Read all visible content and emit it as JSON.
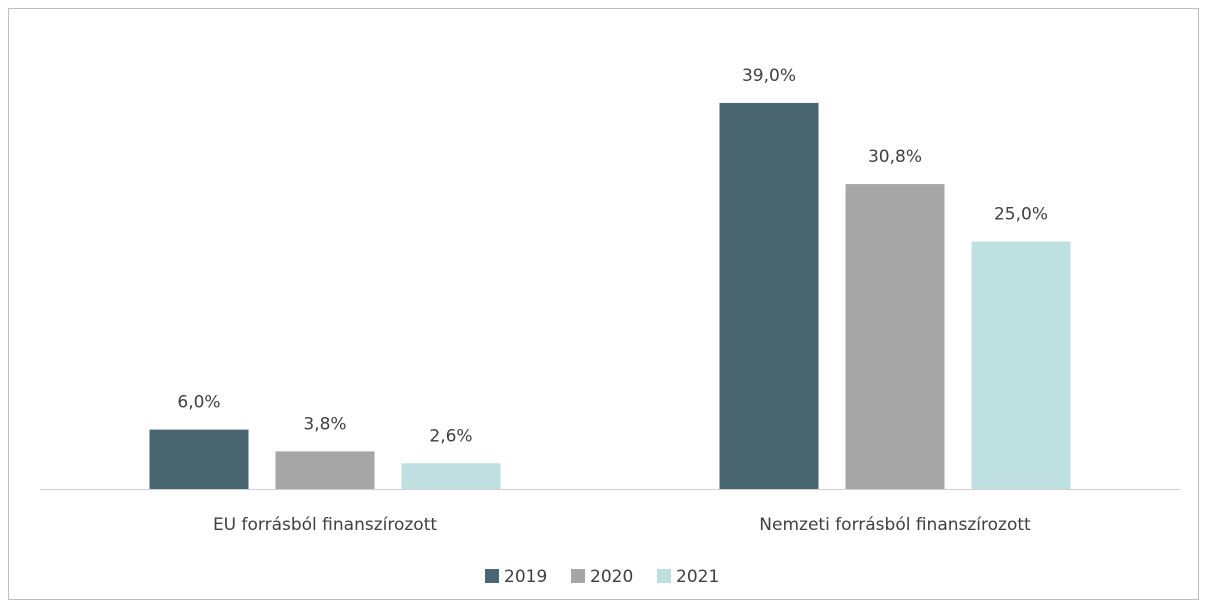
{
  "chart_data": {
    "type": "bar",
    "categories": [
      "EU forrásból finanszírozott",
      "Nemzeti forrásból finanszírozott"
    ],
    "series": [
      {
        "name": "2019",
        "color": "#4a6670",
        "values": [
          6.0,
          39.0
        ],
        "value_labels": [
          "6,0%",
          "39,0%"
        ]
      },
      {
        "name": "2020",
        "color": "#a6a6a6",
        "values": [
          3.8,
          30.8
        ],
        "value_labels": [
          "3,8%",
          "30,8%"
        ]
      },
      {
        "name": "2021",
        "color": "#bfe0e0",
        "values": [
          2.6,
          25.0
        ],
        "value_labels": [
          "2,6%",
          "25,0%"
        ]
      }
    ],
    "ylim": [
      0,
      40
    ],
    "legend": "bottom"
  }
}
